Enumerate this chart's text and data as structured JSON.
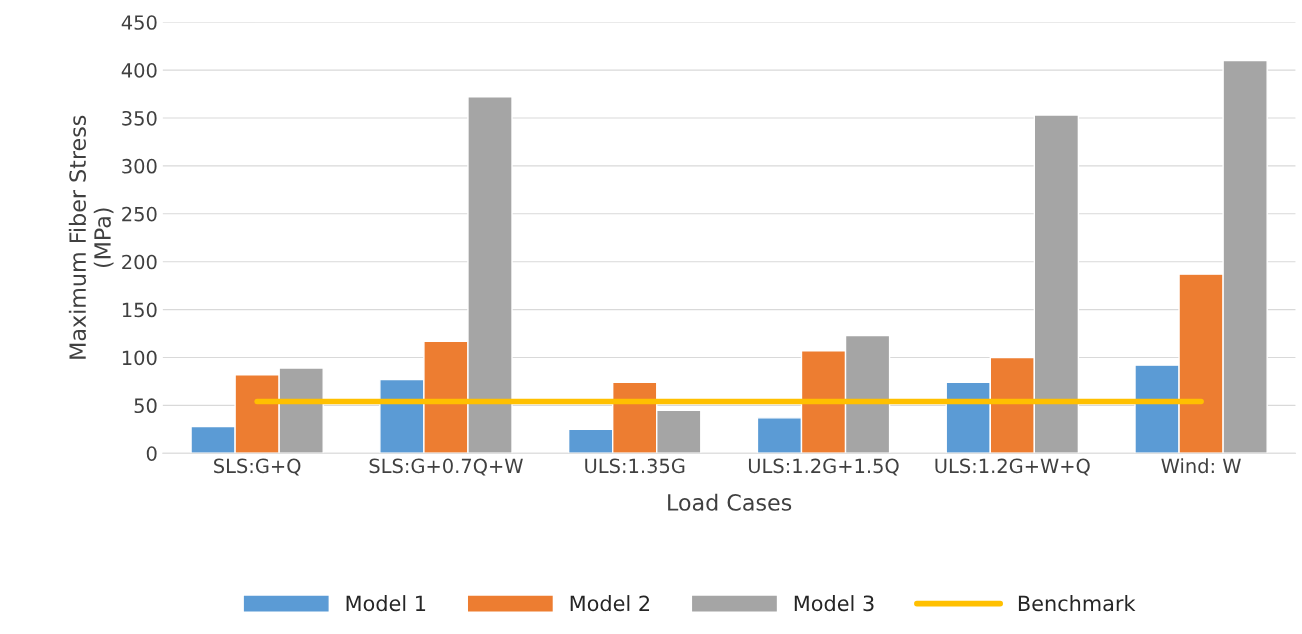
{
  "chart_data": {
    "type": "bar",
    "xlabel": "Load Cases",
    "ylabel": "Maximum Fiber Stress\n(MPa)",
    "categories": [
      "SLS:G+Q",
      "SLS:G+0.7Q+W",
      "ULS:1.35G",
      "ULS:1.2G+1.5Q",
      "ULS:1.2G+W+Q",
      "Wind: W"
    ],
    "series": [
      {
        "name": "Model 1",
        "color": "#5b9bd5",
        "values": [
          28,
          77,
          25,
          37,
          74,
          92
        ]
      },
      {
        "name": "Model 2",
        "color": "#ed7d31",
        "values": [
          82,
          117,
          74,
          107,
          100,
          187
        ]
      },
      {
        "name": "Model 3",
        "color": "#a5a5a5",
        "values": [
          89,
          372,
          45,
          123,
          353,
          410
        ]
      },
      {
        "name": "Benchmark",
        "type": "line",
        "color": "#ffc000",
        "values": [
          54,
          54,
          54,
          54,
          54,
          54
        ]
      }
    ],
    "ylim": [
      0,
      450
    ],
    "yticks": [
      0,
      50,
      100,
      150,
      200,
      250,
      300,
      350,
      400,
      450
    ],
    "grid": "y",
    "legend": "bottom"
  }
}
